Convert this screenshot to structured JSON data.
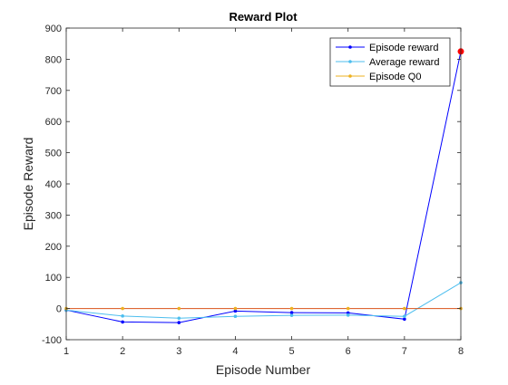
{
  "chart_data": {
    "type": "line",
    "title": "Reward Plot",
    "xlabel": "Episode Number",
    "ylabel": "Episode Reward",
    "xlim": [
      1,
      8
    ],
    "ylim": [
      -100,
      900
    ],
    "xticks": [
      1,
      2,
      3,
      4,
      5,
      6,
      7,
      8
    ],
    "yticks": [
      -100,
      0,
      100,
      200,
      300,
      400,
      500,
      600,
      700,
      800,
      900
    ],
    "xtick_labels": [
      "1",
      "2",
      "3",
      "4",
      "5",
      "6",
      "7",
      "8"
    ],
    "ytick_labels": [
      "-100",
      "0",
      "100",
      "200",
      "300",
      "400",
      "500",
      "600",
      "700",
      "800",
      "900"
    ],
    "grid": false,
    "legend_position": "top-right",
    "x": [
      1,
      2,
      3,
      4,
      5,
      6,
      7,
      8
    ],
    "series": [
      {
        "name": "Episode reward",
        "color": "#0000ff",
        "values": [
          -5,
          -43,
          -45,
          -8,
          -13,
          -14,
          -34,
          825
        ]
      },
      {
        "name": "Average reward",
        "color": "#4dbeee",
        "values": [
          -5,
          -24,
          -31,
          -25,
          -22,
          -21,
          -25,
          83
        ]
      },
      {
        "name": "Episode Q0",
        "color": "#edb120",
        "values": [
          0,
          0,
          0,
          0,
          0,
          0,
          0,
          0
        ]
      }
    ],
    "zero_line_color": "#d95319",
    "highlight": {
      "x": 8,
      "y": 825,
      "color": "#ff0000"
    }
  }
}
